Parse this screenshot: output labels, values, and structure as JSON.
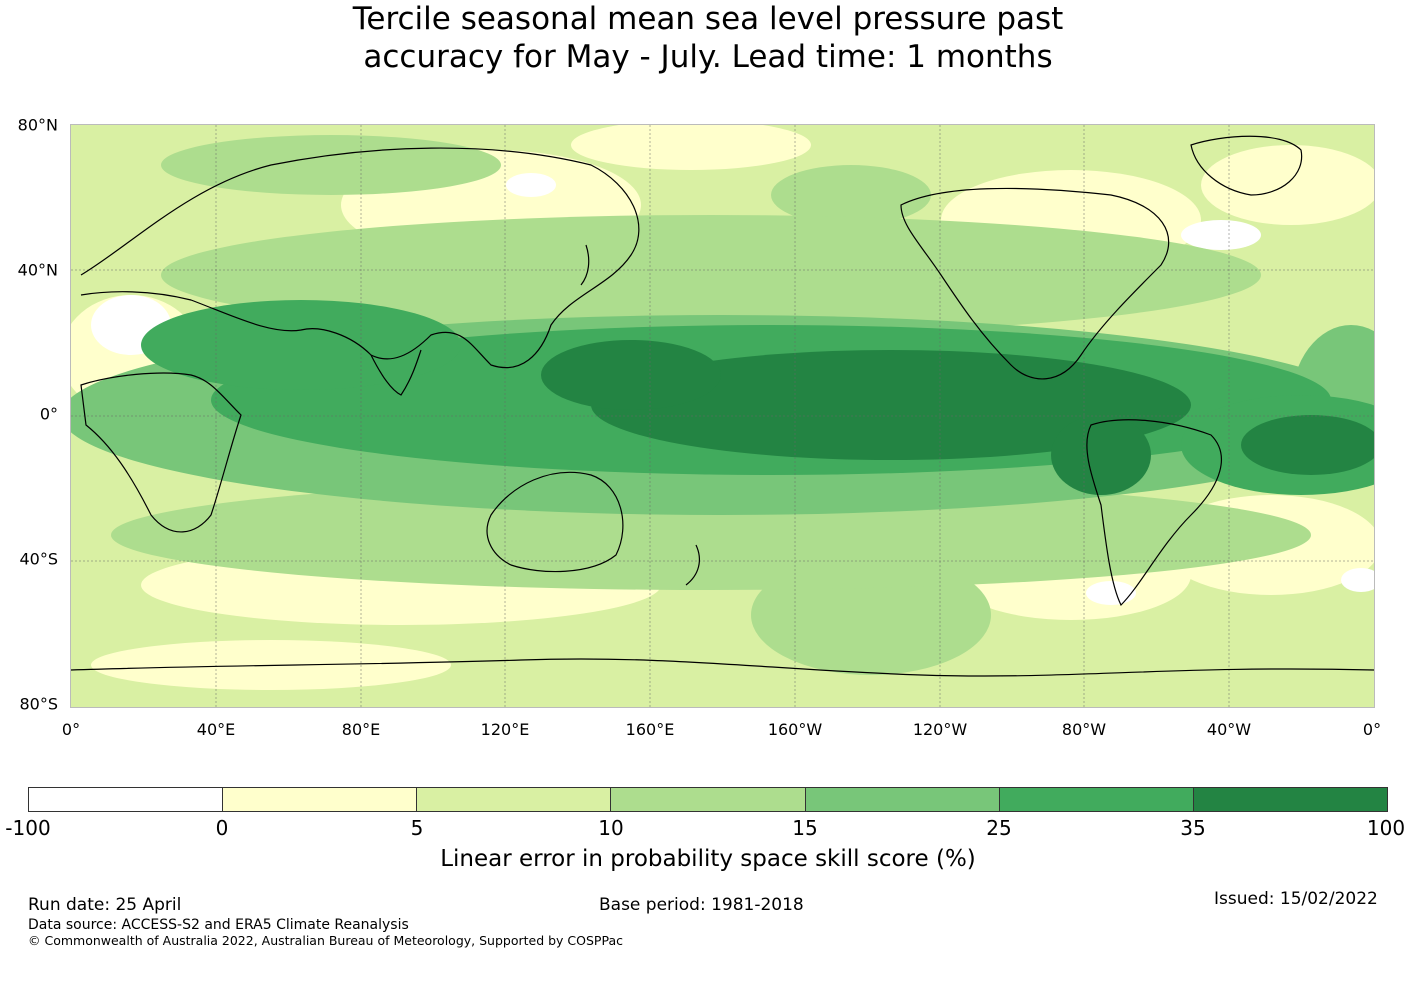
{
  "title": {
    "line1": "Tercile seasonal mean sea level pressure past",
    "line2": "accuracy for May - July. Lead time: 1 months"
  },
  "map": {
    "lat_labels": [
      "80°N",
      "40°N",
      "0°",
      "40°S",
      "80°S"
    ],
    "lon_labels": [
      "0°",
      "40°E",
      "80°E",
      "120°E",
      "160°E",
      "160°W",
      "120°W",
      "80°W",
      "40°W",
      "0°"
    ]
  },
  "colorbar": {
    "ticks": [
      "-100",
      "0",
      "5",
      "10",
      "15",
      "25",
      "35",
      "100"
    ],
    "colors": [
      "#ffffff",
      "#ffffcc",
      "#d9f0a3",
      "#addd8e",
      "#78c679",
      "#41ab5d",
      "#238443"
    ],
    "label": "Linear error in probability space skill score (%)"
  },
  "footer": {
    "run_date": "Run date: 25 April",
    "base_period": "Base period: 1981-2018",
    "issued": "Issued: 15/02/2022",
    "data_source": "Data source: ACCESS-S2 and ERA5 Climate Reanalysis",
    "copyright": "© Commonwealth of Australia 2022, Australian Bureau of Meteorology, Supported by COSPPac"
  }
}
